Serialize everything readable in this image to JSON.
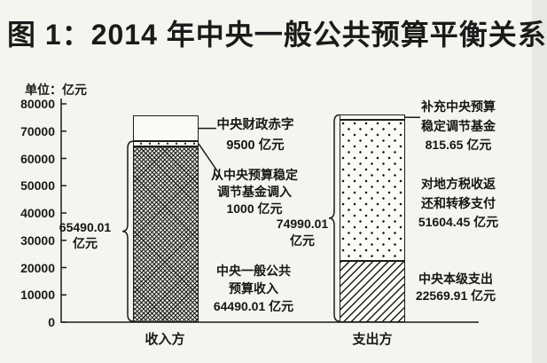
{
  "figure": {
    "title": "图 1：2014 年中央一般公共预算平衡关系",
    "unit_label": "单位：亿元"
  },
  "chart_data": {
    "type": "bar",
    "stacked": true,
    "title": "图 1：2014 年中央一般公共预算平衡关系",
    "unit": "亿元",
    "xlabel": "",
    "ylabel": "单位：亿元",
    "ylim": [
      0,
      80000
    ],
    "yticks": [
      0,
      10000,
      20000,
      30000,
      40000,
      50000,
      60000,
      70000,
      80000
    ],
    "grid": false,
    "legend_position": "none (segments labeled directly with leader lines and braces)",
    "categories": [
      "收入方",
      "支出方"
    ],
    "bars": [
      {
        "id": "income",
        "category": "收入方",
        "brace": {
          "value": 65490.01,
          "covers_segments": 2,
          "label_lines": [
            "65490.01",
            "亿元"
          ]
        },
        "segments": [
          {
            "id": "public-budget-revenue",
            "name": "中央一般公共预算收入",
            "value": 64490.01,
            "pattern": "crosshatch",
            "label_lines": [
              "中央一般公共",
              "预算收入",
              "64490.01 亿元"
            ]
          },
          {
            "id": "fund-transfer-in",
            "name": "从中央预算稳定调节基金调入",
            "value": 1000,
            "pattern": "dots-sparse",
            "label_lines": [
              "从中央预算稳定",
              "调节基金调入",
              "1000 亿元"
            ]
          },
          {
            "id": "fiscal-deficit",
            "name": "中央财政赤字",
            "value": 9500,
            "pattern": "plain",
            "label_lines": [
              "中央财政赤字",
              "9500 亿元"
            ]
          }
        ]
      },
      {
        "id": "expenditure",
        "category": "支出方",
        "brace": {
          "value": 74990.01,
          "covers_segments": 3,
          "label_lines": [
            "74990.01",
            "亿元"
          ]
        },
        "segments": [
          {
            "id": "central-level-spending",
            "name": "中央本级支出",
            "value": 22569.91,
            "pattern": "hatch",
            "label_lines": [
              "中央本级支出",
              "22569.91 亿元"
            ]
          },
          {
            "id": "transfers-to-local",
            "name": "对地方税收返还和转移支付",
            "value": 51604.45,
            "pattern": "dots",
            "label_lines": [
              "对地方税收返",
              "还和转移支付",
              "51604.45 亿元"
            ]
          },
          {
            "id": "replenish-stabilization-fund",
            "name": "补充中央预算稳定调节基金",
            "value": 815.65,
            "pattern": "plain",
            "label_lines": [
              "补充中央预算",
              "稳定调节基金",
              "815.65 亿元"
            ]
          }
        ]
      }
    ],
    "ink_color": "#1a1a1a",
    "background_color": "#f5f4ee"
  }
}
